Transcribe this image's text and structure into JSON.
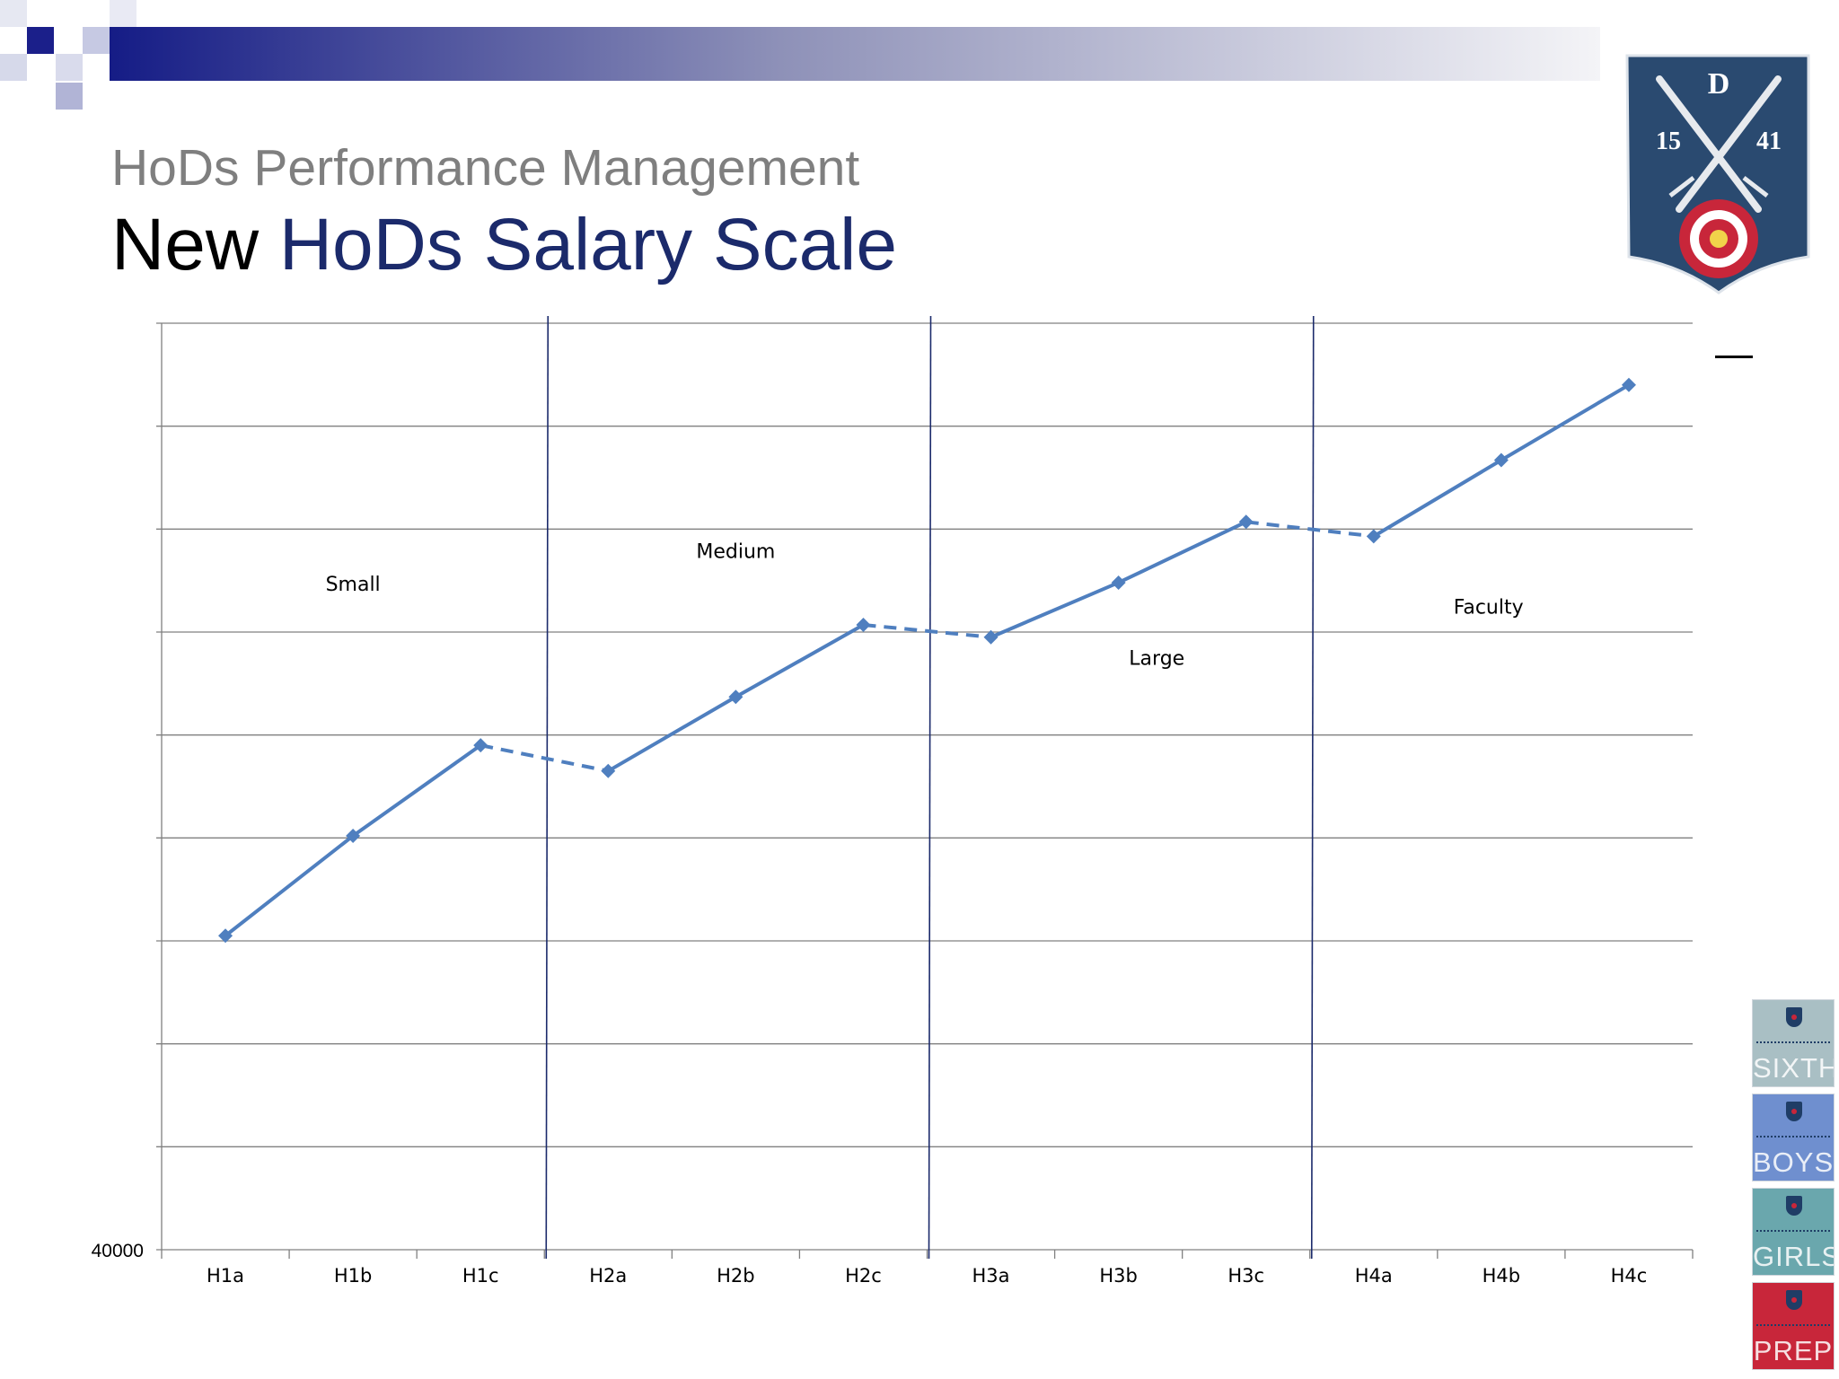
{
  "slide": {
    "subtitle": "HoDs Performance Management",
    "title_prefix": "New",
    "title_accent": "HoDs Salary Scale"
  },
  "crest": {
    "letter": "D",
    "year_left": "15",
    "year_right": "41"
  },
  "school_tiles": [
    {
      "label": "SIXTH",
      "color": "#a9bfc4"
    },
    {
      "label": "BOYS",
      "color": "#6f8fcf"
    },
    {
      "label": "GIRLS",
      "color": "#6aa7ad"
    },
    {
      "label": "PREP",
      "color": "#c8263a"
    }
  ],
  "colors": {
    "line": "#4f7fbf",
    "divider": "#1b2a6b",
    "grid": "#808080",
    "title_accent": "#1b2a6b",
    "subtitle": "#7f7f7f"
  },
  "chart_data": {
    "type": "line",
    "categories": [
      "H1a",
      "H1b",
      "H1c",
      "H2a",
      "H2b",
      "H2c",
      "H3a",
      "H3b",
      "H3c",
      "H4a",
      "H4b",
      "H4c"
    ],
    "y_tick_label": "40000",
    "y_gridlines": 9,
    "relative_levels": [
      3.05,
      4.02,
      4.9,
      4.65,
      5.37,
      6.07,
      5.95,
      6.48,
      7.07,
      6.93,
      7.67,
      8.4
    ],
    "level_range": [
      0,
      9
    ],
    "segments": [
      {
        "from": 0,
        "to": 2,
        "style": "solid"
      },
      {
        "from": 2,
        "to": 3,
        "style": "dashed"
      },
      {
        "from": 3,
        "to": 5,
        "style": "solid"
      },
      {
        "from": 5,
        "to": 6,
        "style": "dashed"
      },
      {
        "from": 6,
        "to": 8,
        "style": "solid"
      },
      {
        "from": 8,
        "to": 9,
        "style": "dashed"
      },
      {
        "from": 9,
        "to": 11,
        "style": "solid"
      }
    ],
    "group_dividers_after": [
      2,
      5,
      8
    ],
    "band_labels": [
      "Small",
      "Medium",
      "Large",
      "Faculty"
    ],
    "marker": "diamond",
    "grid": true,
    "legend": "none"
  }
}
